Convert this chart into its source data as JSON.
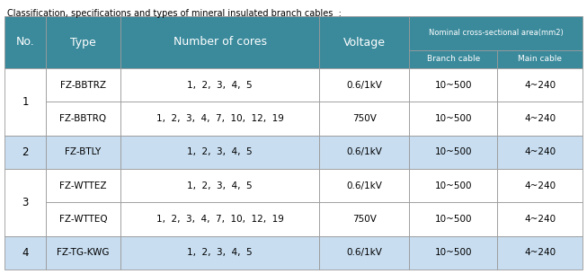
{
  "title": "Classification, specifications and types of mineral insulated branch cables  :",
  "header_bg": "#3a8a9c",
  "header_text_color": "#ffffff",
  "row_bg_white": "#ffffff",
  "row_bg_blue": "#c8ddf0",
  "border_color": "#999999",
  "fig_bg": "#f0f0f0",
  "rows": [
    {
      "no": "1",
      "type": "FZ-BBTRZ",
      "cores": "1,  2,  3,  4,  5",
      "voltage": "0.6/1kV",
      "branch": "10~500",
      "main": "4~240",
      "bg": "white"
    },
    {
      "no": "1",
      "type": "FZ-BBTRQ",
      "cores": "1,  2,  3,  4,  7,  10,  12,  19",
      "voltage": "750V",
      "branch": "10~500",
      "main": "4~240",
      "bg": "white"
    },
    {
      "no": "2",
      "type": "FZ-BTLY",
      "cores": "1,  2,  3,  4,  5",
      "voltage": "0.6/1kV",
      "branch": "10~500",
      "main": "4~240",
      "bg": "blue"
    },
    {
      "no": "3",
      "type": "FZ-WTTEZ",
      "cores": "1,  2,  3,  4,  5",
      "voltage": "0.6/1kV",
      "branch": "10~500",
      "main": "4~240",
      "bg": "white"
    },
    {
      "no": "3",
      "type": "FZ-WTTEQ",
      "cores": "1,  2,  3,  4,  7,  10,  12,  19",
      "voltage": "750V",
      "branch": "10~500",
      "main": "4~240",
      "bg": "white"
    },
    {
      "no": "4",
      "type": "FZ-TG-KWG",
      "cores": "1,  2,  3,  4,  5",
      "voltage": "0.6/1kV",
      "branch": "10~500",
      "main": "4~240",
      "bg": "blue"
    }
  ]
}
